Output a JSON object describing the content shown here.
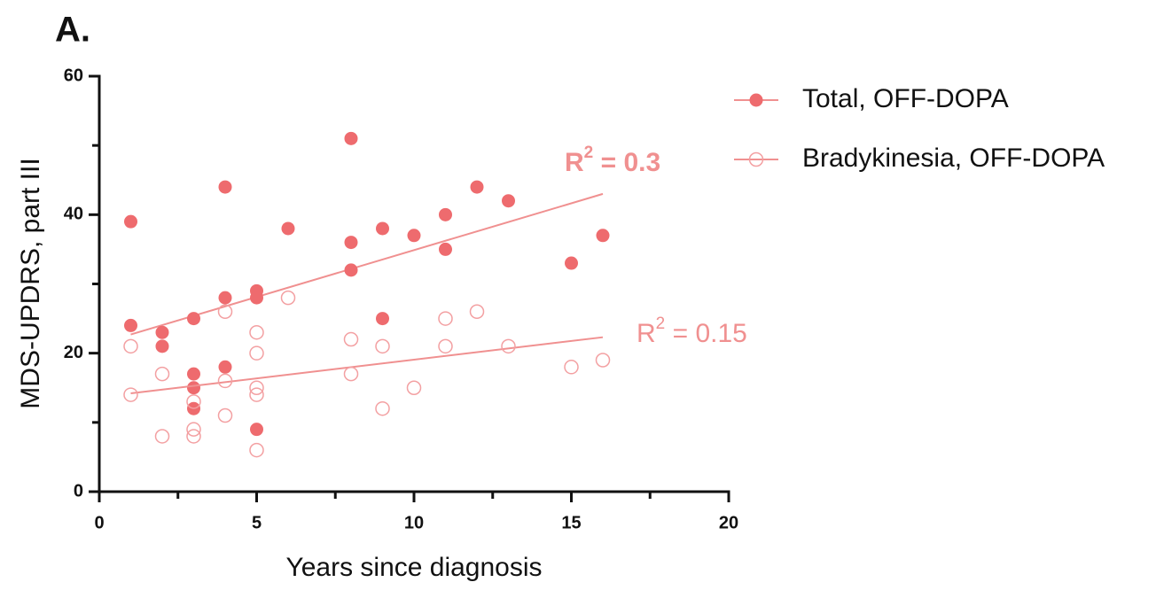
{
  "chart_data": {
    "type": "scatter",
    "panel_label": "A.",
    "xlabel": "Years since diagnosis",
    "ylabel": "MDS-UPDRS, part III",
    "xlim": [
      0,
      20
    ],
    "ylim": [
      0,
      60
    ],
    "xticks": [
      0,
      5,
      10,
      15,
      20
    ],
    "yticks": [
      0,
      20,
      40,
      60
    ],
    "xminorticks": [
      2.5,
      7.5,
      12.5,
      17.5
    ],
    "yminorticks": [
      10,
      30,
      50
    ],
    "series": [
      {
        "name": "Total, OFF-DOPA",
        "color": "#ee6b6e",
        "line_color": "#f09090",
        "marker": "filled",
        "x": [
          1,
          1,
          2,
          2,
          3,
          3,
          3,
          3,
          4,
          4,
          4,
          5,
          5,
          5,
          6,
          8,
          8,
          8,
          9,
          9,
          10,
          11,
          11,
          12,
          13,
          15,
          16
        ],
        "values": [
          39,
          24,
          23,
          21,
          25,
          17,
          15,
          12,
          44,
          28,
          18,
          29,
          28,
          9,
          38,
          51,
          36,
          32,
          38,
          25,
          37,
          40,
          35,
          44,
          42,
          33,
          37
        ],
        "fit": {
          "x": [
            1,
            16
          ],
          "y": [
            22.7,
            43
          ]
        },
        "annotation": {
          "base": "R",
          "sup": "2",
          "rest": " = 0.3",
          "bold": true
        }
      },
      {
        "name": "Bradykinesia, OFF-DOPA",
        "color": "#f3a0a2",
        "line_color": "#f09090",
        "marker": "open",
        "x": [
          1,
          1,
          2,
          2,
          3,
          3,
          3,
          4,
          4,
          4,
          5,
          5,
          5,
          5,
          5,
          6,
          8,
          8,
          9,
          9,
          10,
          11,
          11,
          12,
          13,
          15,
          16
        ],
        "values": [
          21,
          14,
          17,
          8,
          13,
          9,
          8,
          26,
          16,
          11,
          23,
          20,
          15,
          14,
          6,
          28,
          22,
          17,
          21,
          12,
          15,
          25,
          21,
          26,
          21,
          18,
          19
        ],
        "fit": {
          "x": [
            1,
            16
          ],
          "y": [
            14.2,
            22.3
          ]
        },
        "annotation": {
          "base": "R",
          "sup": "2",
          "rest": " = 0.15",
          "bold": false
        }
      }
    ]
  }
}
